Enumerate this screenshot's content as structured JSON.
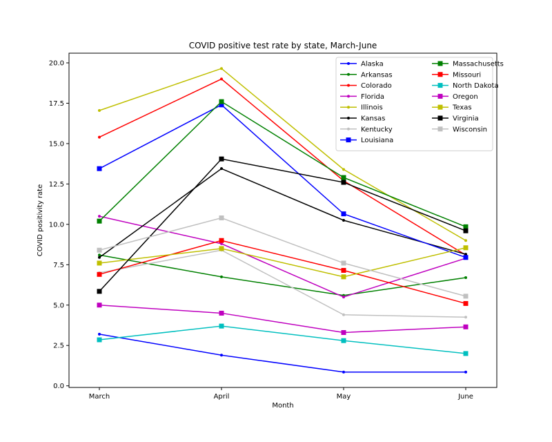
{
  "chart_data": {
    "type": "line",
    "title": "COVID positive test rate by state, March-June",
    "xlabel": "Month",
    "ylabel": "COVID positivity rate",
    "categories": [
      "March",
      "April",
      "May",
      "June"
    ],
    "ylim": [
      -0.1,
      20.6
    ],
    "yticks": [
      0.0,
      2.5,
      5.0,
      7.5,
      10.0,
      12.5,
      15.0,
      17.5,
      20.0
    ],
    "ytick_labels": [
      "0.0",
      "2.5",
      "5.0",
      "7.5",
      "10.0",
      "12.5",
      "15.0",
      "17.5",
      "20.0"
    ],
    "grid": false,
    "legend_position": "top-right",
    "legend_columns": 2,
    "series": [
      {
        "name": "Alaska",
        "color": "#0000ff",
        "marker": "dot",
        "values": [
          3.2,
          1.9,
          0.85,
          0.85
        ]
      },
      {
        "name": "Arkansas",
        "color": "#008000",
        "marker": "dot",
        "values": [
          8.1,
          6.75,
          5.6,
          6.7
        ]
      },
      {
        "name": "Colorado",
        "color": "#ff0000",
        "marker": "dot",
        "values": [
          15.4,
          19.0,
          12.7,
          8.1
        ]
      },
      {
        "name": "Florida",
        "color": "#bf00bf",
        "marker": "dot",
        "values": [
          10.5,
          8.8,
          5.5,
          7.9
        ]
      },
      {
        "name": "Illinois",
        "color": "#bfbf00",
        "marker": "dot",
        "values": [
          17.05,
          19.65,
          13.4,
          9.0
        ]
      },
      {
        "name": "Kansas",
        "color": "#000000",
        "marker": "dot",
        "values": [
          7.95,
          13.45,
          10.25,
          8.15
        ]
      },
      {
        "name": "Kentucky",
        "color": "#c0c0c0",
        "marker": "dot",
        "values": [
          7.0,
          8.4,
          4.4,
          4.25
        ]
      },
      {
        "name": "Louisiana",
        "color": "#0000ff",
        "marker": "square",
        "values": [
          13.45,
          17.4,
          10.65,
          7.95
        ]
      },
      {
        "name": "Massachusetts",
        "color": "#008000",
        "marker": "square",
        "values": [
          10.2,
          17.6,
          12.9,
          9.85
        ]
      },
      {
        "name": "Missouri",
        "color": "#ff0000",
        "marker": "square",
        "values": [
          6.9,
          9.0,
          7.15,
          5.1
        ]
      },
      {
        "name": "North Dakota",
        "color": "#00bfbf",
        "marker": "square",
        "values": [
          2.85,
          3.7,
          2.8,
          2.0
        ]
      },
      {
        "name": "Oregon",
        "color": "#bf00bf",
        "marker": "square",
        "values": [
          5.0,
          4.5,
          3.3,
          3.65
        ]
      },
      {
        "name": "Texas",
        "color": "#bfbf00",
        "marker": "square",
        "values": [
          7.6,
          8.5,
          6.75,
          8.55
        ]
      },
      {
        "name": "Virginia",
        "color": "#000000",
        "marker": "square",
        "values": [
          5.85,
          14.05,
          12.6,
          9.6
        ]
      },
      {
        "name": "Wisconsin",
        "color": "#c0c0c0",
        "marker": "square",
        "values": [
          8.4,
          10.4,
          7.6,
          5.55
        ]
      }
    ]
  }
}
